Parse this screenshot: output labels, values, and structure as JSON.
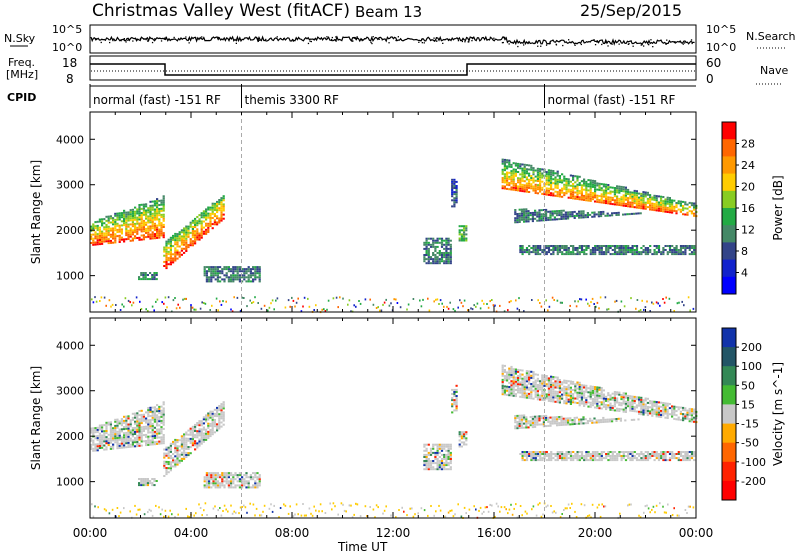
{
  "header": {
    "title": "Christmas Valley West (fitACF)",
    "beam": "Beam 13",
    "date": "25/Sep/2015"
  },
  "strip_labels": {
    "nsky": "N.Sky",
    "nsky_ticks": [
      "10^5",
      "10^0"
    ],
    "nsky_right_ticks": [
      "10^5",
      "10^0"
    ],
    "nsearch": "N.Search",
    "freq": "Freq.",
    "freq_unit": "[MHz]",
    "freq_ticks": [
      "18",
      "8"
    ],
    "nave_ticks": [
      "60",
      "0"
    ],
    "nave": "Nave",
    "cpid": "CPID"
  },
  "cpid_segments": [
    {
      "label": "normal (fast) -151 RF",
      "start": 0,
      "end": 6
    },
    {
      "label": "themis 3300 RF",
      "start": 6,
      "end": 18
    },
    {
      "label": "normal (fast) -151 RF",
      "start": 18,
      "end": 24
    }
  ],
  "chart_data": [
    {
      "type": "heatmap",
      "name": "power",
      "ylabel": "Slant Range [km]",
      "yticks": [
        1000,
        2000,
        3000,
        4000
      ],
      "ylim": [
        200,
        4600
      ],
      "xlim": [
        0,
        24
      ],
      "colorbar": {
        "label": "Power [dB]",
        "ticks": [
          "28",
          "24",
          "20",
          "16",
          "12",
          "8",
          "4"
        ],
        "colors": [
          "#ff0000",
          "#ff6600",
          "#ff9900",
          "#ffcc00",
          "#88cc22",
          "#22aa44",
          "#448866",
          "#334488",
          "#1122cc",
          "#0000ff"
        ]
      }
    },
    {
      "type": "heatmap",
      "name": "velocity",
      "ylabel": "Slant Range [km]",
      "yticks": [
        1000,
        2000,
        3000,
        4000
      ],
      "ylim": [
        200,
        4600
      ],
      "xlim": [
        0,
        24
      ],
      "xlabel": "Time UT",
      "xticks": [
        "00:00",
        "04:00",
        "08:00",
        "12:00",
        "16:00",
        "20:00",
        "00:00"
      ],
      "colorbar": {
        "label": "Velocity [m s^-1]",
        "ticks": [
          "200",
          "100",
          "50",
          "15",
          "-15",
          "-50",
          "-100",
          "-200"
        ],
        "colors": [
          "#1133aa",
          "#225566",
          "#338855",
          "#44bb33",
          "#c8c8c8",
          "#ffaa00",
          "#ff6600",
          "#ff2200",
          "#ff0000"
        ]
      }
    }
  ]
}
